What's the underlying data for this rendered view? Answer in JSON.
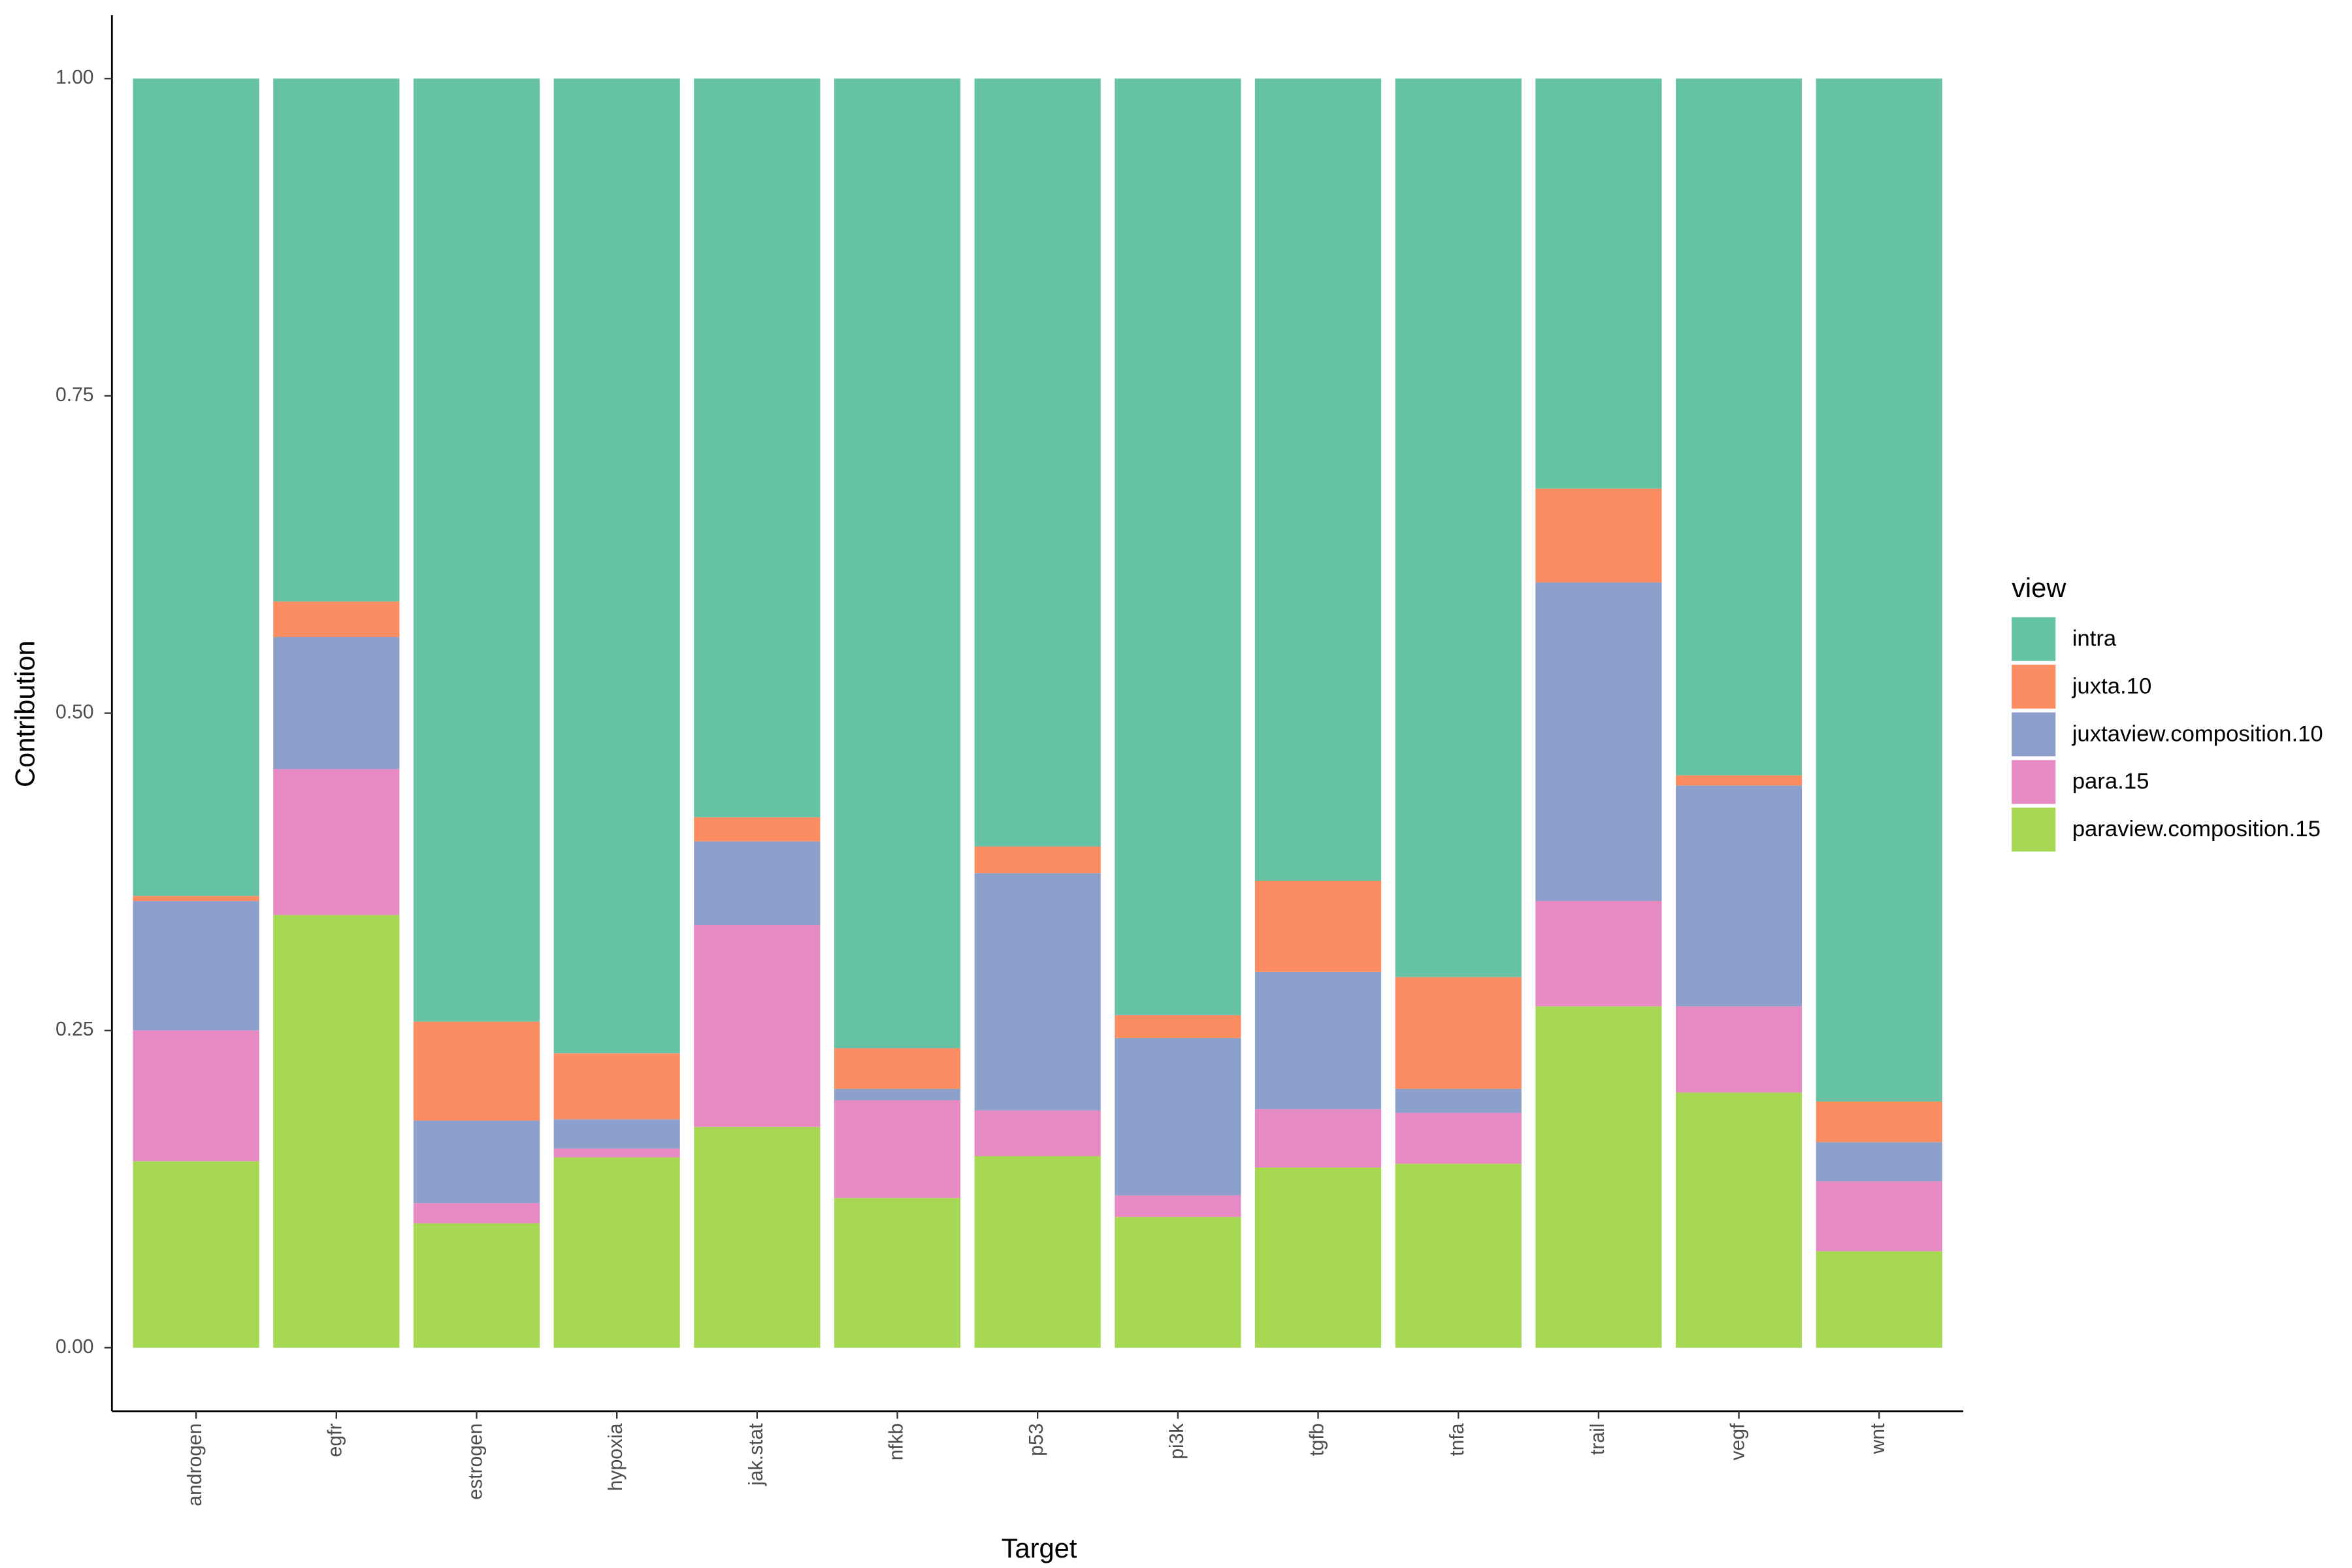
{
  "chart_data": {
    "type": "stacked_bar",
    "x_label": "Target",
    "y_label": "Contribution",
    "legend_title": "view",
    "legend_position": "right",
    "grid": false,
    "categories": [
      "androgen",
      "egfr",
      "estrogen",
      "hypoxia",
      "jak.stat",
      "nfkb",
      "p53",
      "pi3k",
      "tgfb",
      "tnfa",
      "trail",
      "vegf",
      "wnt"
    ],
    "series": [
      {
        "name": "intra",
        "color": "#66C2A5",
        "values": [
          0.644,
          0.412,
          0.743,
          0.768,
          0.582,
          0.764,
          0.605,
          0.738,
          0.632,
          0.708,
          0.323,
          0.549,
          0.806
        ]
      },
      {
        "name": "juxta.10",
        "color": "#FC8D62",
        "values": [
          0.004,
          0.028,
          0.078,
          0.052,
          0.019,
          0.032,
          0.021,
          0.018,
          0.072,
          0.088,
          0.074,
          0.008,
          0.032
        ]
      },
      {
        "name": "juxtaview.composition.10",
        "color": "#8DA0CB",
        "values": [
          0.102,
          0.104,
          0.065,
          0.023,
          0.066,
          0.009,
          0.187,
          0.124,
          0.108,
          0.019,
          0.251,
          0.174,
          0.031
        ]
      },
      {
        "name": "para.15",
        "color": "#E78AC3",
        "values": [
          0.103,
          0.115,
          0.016,
          0.007,
          0.159,
          0.077,
          0.036,
          0.017,
          0.046,
          0.04,
          0.083,
          0.068,
          0.055
        ]
      },
      {
        "name": "paraview.composition.15",
        "color": "#A6D854",
        "values": [
          0.147,
          0.341,
          0.098,
          0.15,
          0.174,
          0.118,
          0.151,
          0.103,
          0.142,
          0.145,
          0.269,
          0.201,
          0.076
        ]
      }
    ],
    "ylim": [
      -0.05,
      1.05
    ],
    "yticks": [
      {
        "value": 0,
        "label": "0.00"
      },
      {
        "value": 0.25,
        "label": "0.25"
      },
      {
        "value": 0.5,
        "label": "0.50"
      },
      {
        "value": 0.75,
        "label": "0.75"
      },
      {
        "value": 1,
        "label": "1.00"
      }
    ]
  }
}
